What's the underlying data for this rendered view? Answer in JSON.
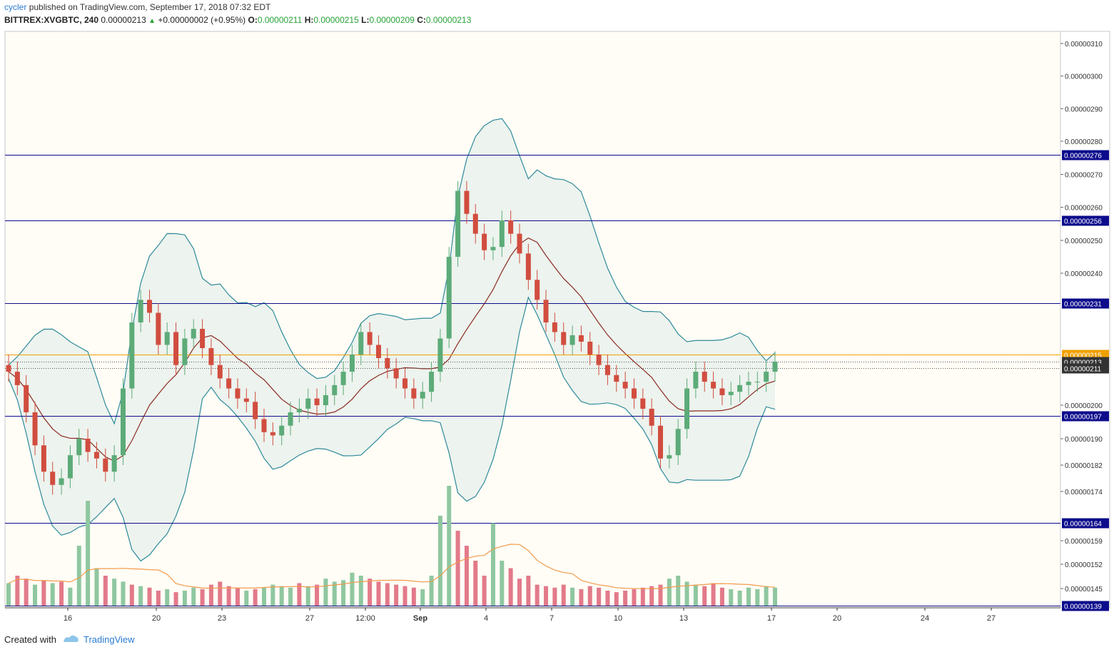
{
  "header": {
    "user": "cycler",
    "published": "published on TradingView.com, September 17, 2018 07:32 EDT"
  },
  "symbol": {
    "name": "BITTREX:XVGBTC, 240",
    "last": "0.00000213",
    "change": "+0.00000002 (+0.95%)",
    "o_label": "O:",
    "o": "0.00000211",
    "h_label": "H:",
    "h": "0.00000215",
    "l_label": "L:",
    "l": "0.00000209",
    "c_label": "C:",
    "c": "0.00000213"
  },
  "footer": {
    "created": "Created with",
    "brand": "TradingView"
  },
  "colors": {
    "background": "#fffdf6",
    "up": "#5cab78",
    "down": "#d14d3f",
    "vol_up": "#8fc7a0",
    "vol_down": "#e27a8a",
    "band": "#2e8a9b",
    "band_fill": "#e8f0ec",
    "mid": "#8b2a22",
    "vol_ma": "#f29a4a",
    "hline": "#0c0c8c",
    "hline_orange": "#f0a000"
  },
  "chart_data": {
    "type": "candlestick",
    "x_ticks": [
      "16",
      "20",
      "23",
      "27",
      "12:00",
      "Sep",
      "4",
      "7",
      "10",
      "13",
      "17",
      "20",
      "24",
      "27"
    ],
    "y_ticks": [
      "0.00000310",
      "0.00000300",
      "0.00000290",
      "0.00000280",
      "0.00000270",
      "0.00000260",
      "0.00000250",
      "0.00000240",
      "0.00000200",
      "0.00000190",
      "0.00000182",
      "0.00000174",
      "0.00000159",
      "0.00000152",
      "0.00000145"
    ],
    "horizontal_lines": [
      {
        "value": "0.00000276",
        "kind": "blue"
      },
      {
        "value": "0.00000256",
        "kind": "blue"
      },
      {
        "value": "0.00000231",
        "kind": "blue"
      },
      {
        "value": "0.00000215",
        "kind": "orange"
      },
      {
        "value": "0.00000197",
        "kind": "blue"
      },
      {
        "value": "0.00000164",
        "kind": "blue"
      },
      {
        "value": "0.00000139",
        "kind": "blue"
      }
    ],
    "price_labels": [
      {
        "value": "0.00000213",
        "kind": "current"
      },
      {
        "value": "0.00000211",
        "kind": "open"
      }
    ],
    "closes": [
      2.1,
      2.06,
      1.98,
      1.88,
      1.8,
      1.76,
      1.78,
      1.85,
      1.9,
      1.86,
      1.84,
      1.8,
      1.85,
      2.05,
      2.25,
      2.32,
      2.28,
      2.18,
      2.22,
      2.12,
      2.2,
      2.23,
      2.17,
      2.12,
      2.08,
      2.05,
      2.02,
      2.01,
      1.96,
      1.92,
      1.91,
      1.94,
      1.98,
      1.99,
      2.02,
      2.0,
      2.03,
      2.06,
      2.1,
      2.15,
      2.22,
      2.18,
      2.14,
      2.11,
      2.08,
      2.05,
      2.02,
      2.04,
      2.1,
      2.2,
      2.45,
      2.65,
      2.58,
      2.52,
      2.47,
      2.48,
      2.56,
      2.52,
      2.46,
      2.38,
      2.32,
      2.25,
      2.22,
      2.18,
      2.21,
      2.19,
      2.15,
      2.12,
      2.09,
      2.07,
      2.05,
      2.02,
      1.99,
      1.94,
      1.84,
      1.85,
      1.93,
      2.05,
      2.1,
      2.07,
      2.05,
      2.03,
      2.04,
      2.06,
      2.07,
      2.07,
      2.1,
      2.13
    ],
    "volumes": [
      15,
      20,
      18,
      14,
      17,
      15,
      16,
      12,
      40,
      70,
      25,
      20,
      18,
      16,
      14,
      13,
      12,
      10,
      11,
      9,
      10,
      12,
      11,
      14,
      16,
      13,
      12,
      10,
      11,
      12,
      14,
      13,
      12,
      15,
      13,
      14,
      18,
      16,
      17,
      22,
      20,
      18,
      16,
      15,
      14,
      13,
      12,
      11,
      20,
      60,
      80,
      50,
      40,
      30,
      20,
      55,
      30,
      25,
      18,
      20,
      14,
      13,
      12,
      14,
      12,
      11,
      13,
      12,
      10,
      9,
      10,
      11,
      12,
      13,
      14,
      18,
      20,
      16,
      14,
      13,
      15,
      12,
      11,
      10,
      12,
      11,
      13,
      12
    ],
    "vol_up": [
      true,
      false,
      false,
      true,
      false,
      true,
      false,
      true,
      true,
      true,
      true,
      false,
      true,
      true,
      false,
      true,
      false,
      false,
      true,
      false,
      true,
      true,
      false,
      false,
      false,
      false,
      false,
      true,
      false,
      true,
      true,
      true,
      true,
      false,
      true,
      false,
      true,
      true,
      true,
      true,
      true,
      false,
      false,
      false,
      false,
      false,
      false,
      true,
      true,
      true,
      true,
      false,
      false,
      false,
      false,
      true,
      true,
      false,
      false,
      false,
      false,
      false,
      false,
      false,
      true,
      false,
      false,
      false,
      false,
      false,
      false,
      false,
      false,
      false,
      false,
      true,
      true,
      true,
      true,
      false,
      false,
      false,
      true,
      true,
      true,
      true,
      true,
      true
    ],
    "notes": "Candles of 240 min with Bollinger Bands (upper/lower teal, basis dark red) and volume bars with orange moving average."
  }
}
